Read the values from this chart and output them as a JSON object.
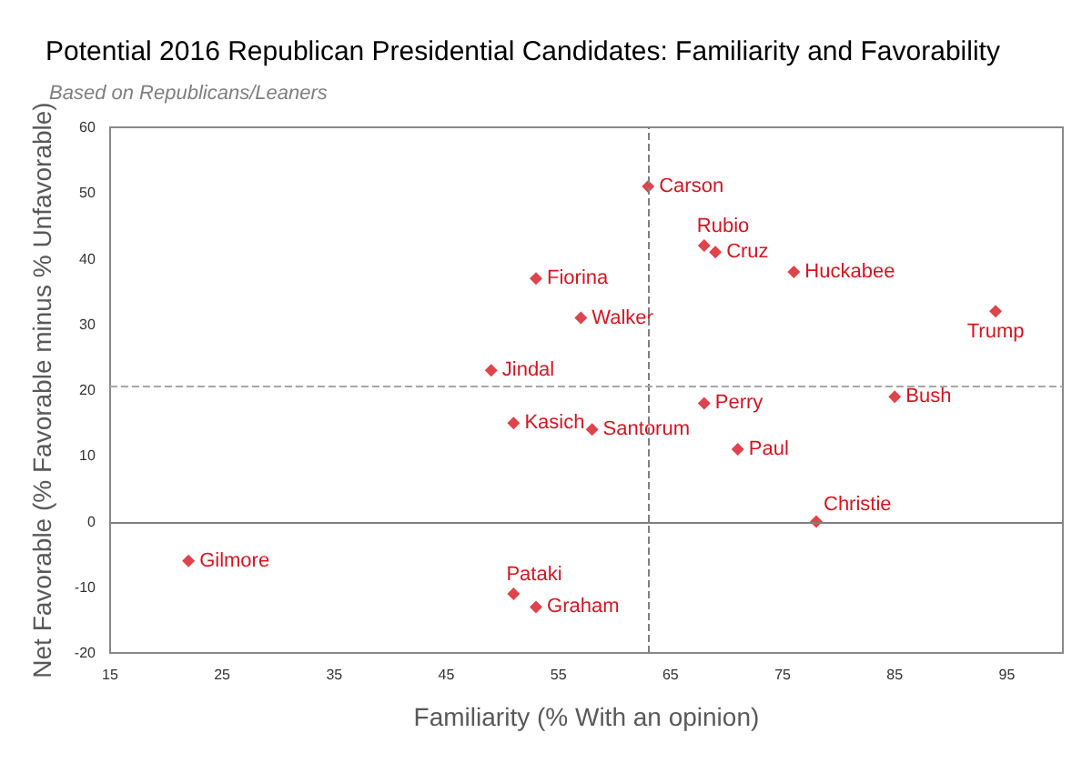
{
  "chart_data": {
    "type": "scatter",
    "title": "Potential 2016 Republican Presidential Candidates: Familiarity and Favorability",
    "subtitle": "Based on Republicans/Leaners",
    "xlabel": "Familiarity (% With an opinion)",
    "ylabel": "Net Favorable (% Favorable minus % Unfavorable)",
    "x": [
      63,
      68,
      69,
      76,
      94,
      53,
      57,
      49,
      51,
      58,
      68,
      85,
      71,
      78,
      22,
      51,
      53
    ],
    "values": [
      51,
      42,
      41,
      38,
      32,
      37,
      31,
      23,
      15,
      14,
      18,
      19,
      11,
      0,
      -6,
      -11,
      -13
    ],
    "color": "#d7141e",
    "marker": "diamond",
    "grid": false,
    "xlim": [
      15,
      100
    ],
    "xticks": [
      15,
      25,
      35,
      45,
      55,
      65,
      75,
      85,
      95
    ],
    "ylim": [
      -20,
      60
    ],
    "yticks": [
      -20,
      -10,
      0,
      10,
      20,
      30,
      40,
      50,
      60
    ],
    "ref_lines": [
      {
        "axis": "x",
        "value": 63,
        "line_style": "dashed",
        "color": "#7f7f7f"
      },
      {
        "axis": "y",
        "value": 20.7,
        "line_style": "dashed",
        "color": "#a6a6a6"
      },
      {
        "axis": "y",
        "value": 0,
        "line_style": "solid",
        "color": "#7f7f7f"
      }
    ],
    "annotations": [
      {
        "text": "Carson",
        "x": 63,
        "y": 51
      },
      {
        "text": "Rubio",
        "x": 68,
        "y": 42
      },
      {
        "text": "Cruz",
        "x": 69,
        "y": 41
      },
      {
        "text": "Huckabee",
        "x": 76,
        "y": 38
      },
      {
        "text": "Trump",
        "x": 94,
        "y": 32
      },
      {
        "text": "Fiorina",
        "x": 53,
        "y": 37
      },
      {
        "text": "Walker",
        "x": 57,
        "y": 31
      },
      {
        "text": "Jindal",
        "x": 49,
        "y": 23
      },
      {
        "text": "Kasich",
        "x": 51,
        "y": 15
      },
      {
        "text": "Santorum",
        "x": 58,
        "y": 14
      },
      {
        "text": "Perry",
        "x": 68,
        "y": 18
      },
      {
        "text": "Bush",
        "x": 85,
        "y": 19
      },
      {
        "text": "Paul",
        "x": 71,
        "y": 11
      },
      {
        "text": "Christie",
        "x": 78,
        "y": 0
      },
      {
        "text": "Gilmore",
        "x": 22,
        "y": -6
      },
      {
        "text": "Pataki",
        "x": 51,
        "y": -11
      },
      {
        "text": "Graham",
        "x": 53,
        "y": -13
      }
    ]
  }
}
